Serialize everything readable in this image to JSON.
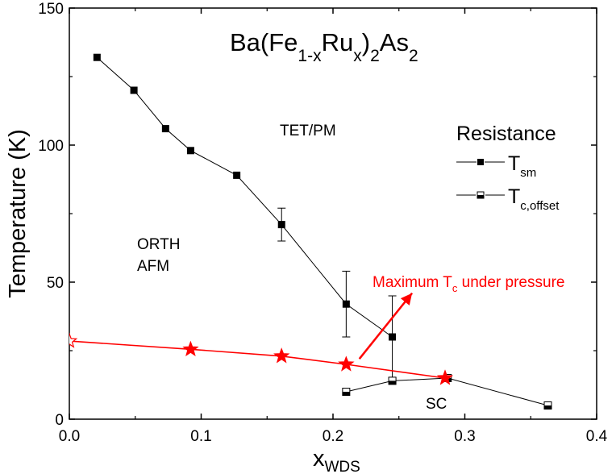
{
  "chart_data": {
    "type": "line",
    "title_parts": [
      "Ba(Fe",
      "1-x",
      "Ru",
      "x",
      ")",
      "2",
      "As",
      "2"
    ],
    "xlabel_main": "x",
    "xlabel_sub": "WDS",
    "ylabel": "Temperature (K)",
    "xlim": [
      0.0,
      0.4
    ],
    "ylim": [
      0,
      150
    ],
    "x_ticks": [
      0.0,
      0.1,
      0.2,
      0.3,
      0.4
    ],
    "x_tick_labels": [
      "0.0",
      "0.1",
      "0.2",
      "0.3",
      "0.4"
    ],
    "y_ticks": [
      0,
      50,
      100,
      150
    ],
    "y_tick_labels": [
      "0",
      "50",
      "100",
      "150"
    ],
    "grid": false,
    "legend_position": "right",
    "legend_title": "Resistance",
    "series": [
      {
        "key": "tsm",
        "legend_main": "T",
        "legend_sub": "sm",
        "marker": "filled-square",
        "color": "#000000",
        "points": [
          {
            "x": 0.021,
            "y": 132
          },
          {
            "x": 0.049,
            "y": 120
          },
          {
            "x": 0.073,
            "y": 106
          },
          {
            "x": 0.092,
            "y": 98
          },
          {
            "x": 0.127,
            "y": 89
          },
          {
            "x": 0.161,
            "y": 71,
            "err": 6
          },
          {
            "x": 0.21,
            "y": 42,
            "err": 12
          },
          {
            "x": 0.245,
            "y": 30,
            "err": 15
          }
        ]
      },
      {
        "key": "tc",
        "legend_main": "T",
        "legend_sub": "c,offset",
        "marker": "half-filled-square",
        "color": "#000000",
        "points": [
          {
            "x": 0.21,
            "y": 10
          },
          {
            "x": 0.245,
            "y": 14
          },
          {
            "x": 0.287,
            "y": 15
          },
          {
            "x": 0.363,
            "y": 5
          }
        ]
      },
      {
        "key": "pressure",
        "marker": "star",
        "color": "#ff0000",
        "points": [
          {
            "x": 0.0,
            "y": 28.5,
            "open": true
          },
          {
            "x": 0.092,
            "y": 25.5
          },
          {
            "x": 0.161,
            "y": 23
          },
          {
            "x": 0.21,
            "y": 20
          },
          {
            "x": 0.285,
            "y": 15
          }
        ]
      }
    ],
    "region_labels": [
      "TET/PM",
      "ORTH",
      "AFM",
      "SC"
    ],
    "annotation": {
      "main": "Maximum T",
      "sub": "c",
      "rest": " under pressure",
      "color": "#ff0000",
      "arrow_from": {
        "x": 0.22,
        "y": 22
      },
      "arrow_to": {
        "x": 0.26,
        "y": 46
      }
    }
  }
}
